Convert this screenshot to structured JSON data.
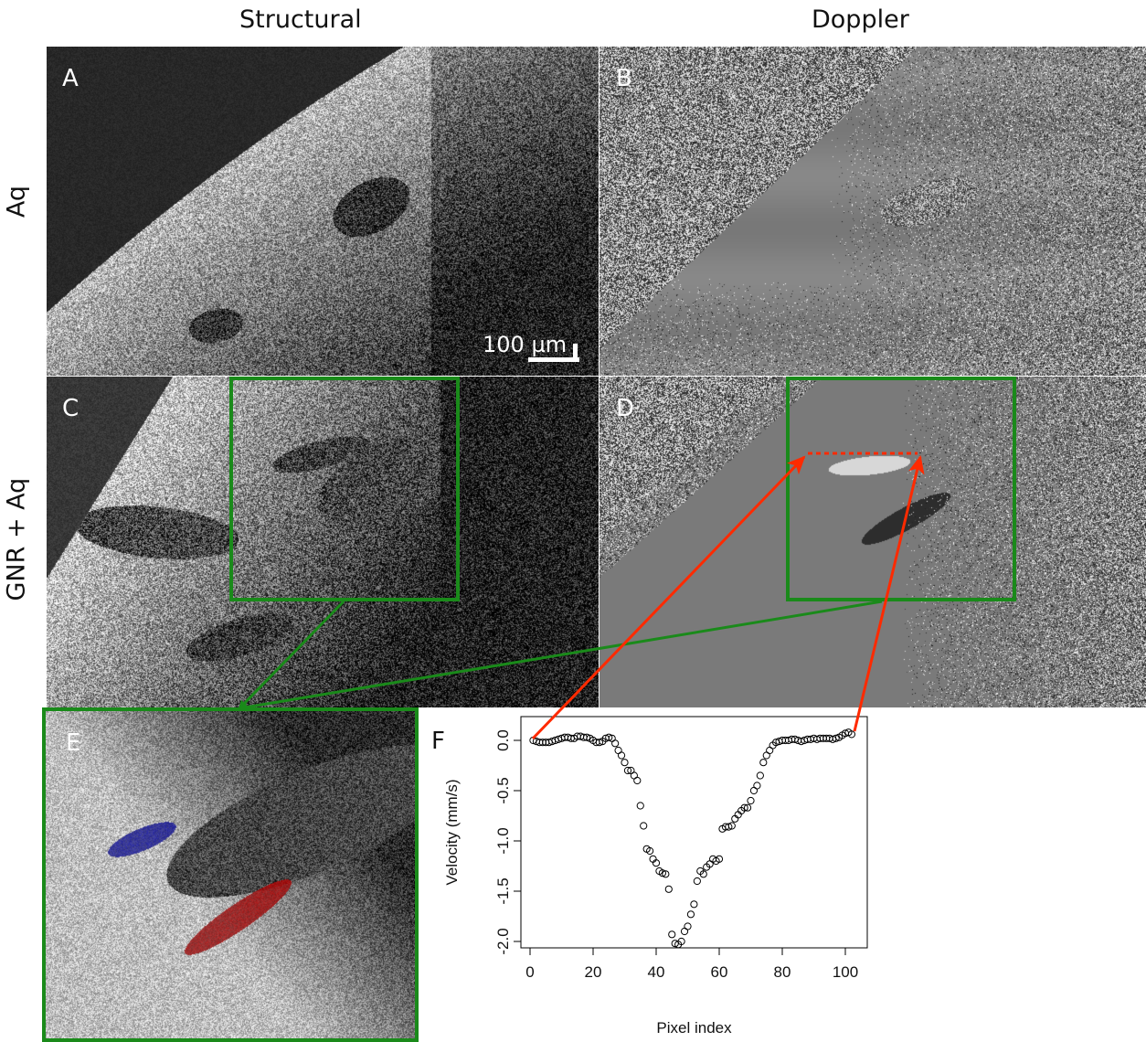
{
  "columns": {
    "structural": "Structural",
    "doppler": "Doppler"
  },
  "rows": {
    "aq": "Aq",
    "gnr_aq": "GNR + Aq"
  },
  "panels": {
    "A": "A",
    "B": "B",
    "C": "C",
    "D": "D",
    "E": "E",
    "F": "F"
  },
  "scalebar": {
    "label": "100 µm"
  },
  "colors": {
    "highlight_box": "#1a8a1a",
    "arrow": "#ff2a00",
    "flow_positive": "#c01818",
    "flow_negative": "#1c2ab0"
  },
  "chart_data": {
    "type": "scatter",
    "xlabel": "Pixel index",
    "ylabel": "Velocity (mm/s)",
    "xlim": [
      0,
      103
    ],
    "ylim": [
      -2.15,
      0.1
    ],
    "xticks": [
      0,
      20,
      40,
      60,
      80,
      100
    ],
    "yticks": [
      0.0,
      -0.5,
      -1.0,
      -1.5,
      -2.0
    ],
    "ytick_labels": [
      "0.0",
      "-0.5",
      "-1.0",
      "-1.5",
      "-2.0"
    ],
    "marker": "open-circle",
    "x": [
      1,
      2,
      3,
      4,
      5,
      6,
      7,
      8,
      9,
      10,
      11,
      12,
      13,
      14,
      15,
      16,
      17,
      18,
      19,
      20,
      21,
      22,
      23,
      24,
      25,
      26,
      27,
      28,
      29,
      30,
      31,
      32,
      33,
      34,
      35,
      36,
      37,
      38,
      39,
      40,
      41,
      42,
      43,
      44,
      45,
      46,
      47,
      48,
      49,
      50,
      51,
      52,
      53,
      54,
      55,
      56,
      57,
      58,
      59,
      60,
      61,
      62,
      63,
      64,
      65,
      66,
      67,
      68,
      69,
      70,
      71,
      72,
      73,
      74,
      75,
      76,
      77,
      78,
      79,
      80,
      81,
      82,
      83,
      84,
      85,
      86,
      87,
      88,
      89,
      90,
      91,
      92,
      93,
      94,
      95,
      96,
      97,
      98,
      99,
      100,
      101,
      102
    ],
    "y": [
      0.0,
      -0.01,
      -0.02,
      -0.02,
      -0.02,
      -0.02,
      -0.01,
      0.0,
      0.01,
      0.02,
      0.03,
      0.03,
      0.02,
      0.02,
      0.04,
      0.04,
      0.03,
      0.03,
      0.02,
      0.0,
      -0.02,
      -0.02,
      -0.01,
      0.02,
      0.03,
      0.02,
      -0.03,
      -0.1,
      -0.15,
      -0.22,
      -0.3,
      -0.3,
      -0.35,
      -0.4,
      -0.65,
      -0.85,
      -1.08,
      -1.1,
      -1.18,
      -1.22,
      -1.3,
      -1.32,
      -1.33,
      -1.48,
      -1.93,
      -2.02,
      -2.03,
      -2.0,
      -1.9,
      -1.85,
      -1.73,
      -1.63,
      -1.4,
      -1.3,
      -1.33,
      -1.26,
      -1.23,
      -1.18,
      -1.2,
      -1.18,
      -0.88,
      -0.86,
      -0.86,
      -0.85,
      -0.78,
      -0.74,
      -0.7,
      -0.67,
      -0.67,
      -0.6,
      -0.5,
      -0.45,
      -0.35,
      -0.22,
      -0.15,
      -0.1,
      -0.05,
      -0.02,
      -0.01,
      0.0,
      0.0,
      0.0,
      0.01,
      0.01,
      0.0,
      -0.01,
      0.0,
      0.01,
      0.01,
      0.02,
      0.01,
      0.02,
      0.02,
      0.02,
      0.02,
      0.01,
      0.02,
      0.03,
      0.05,
      0.07,
      0.08,
      0.06
    ]
  }
}
